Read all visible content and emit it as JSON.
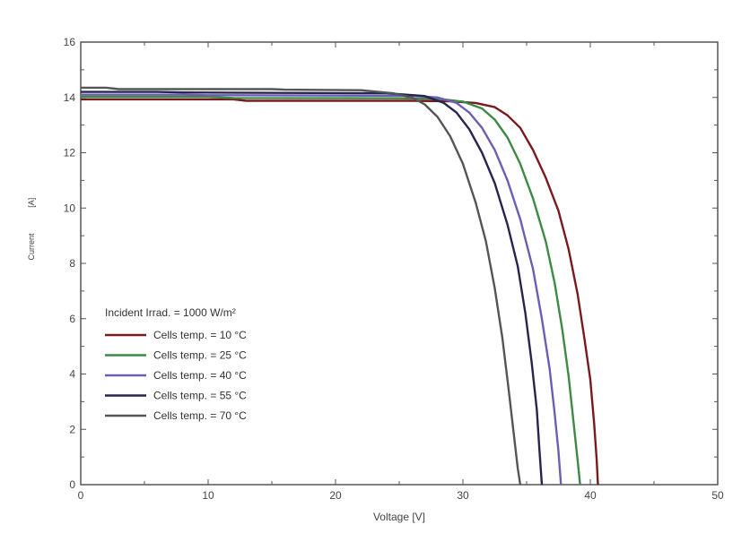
{
  "chart_data": {
    "type": "line",
    "title": "",
    "xlabel": "Voltage  [V]",
    "ylabel_name": "Current",
    "ylabel_unit": "[A]",
    "xlim": [
      0,
      50
    ],
    "ylim": [
      0,
      16
    ],
    "x_ticks": [
      0,
      10,
      20,
      30,
      40,
      50
    ],
    "y_ticks": [
      0,
      2,
      4,
      6,
      8,
      10,
      12,
      14,
      16
    ],
    "grid": false,
    "legend_title": "Incident Irrad. = 1000 W/m²",
    "legend_position": "center-left",
    "series": [
      {
        "name": "Cells temp. = 10  °C",
        "color": "#7a1a1e",
        "points": [
          [
            0,
            13.93
          ],
          [
            12,
            13.93
          ],
          [
            13,
            13.88
          ],
          [
            26,
            13.88
          ],
          [
            29,
            13.86
          ],
          [
            31,
            13.8
          ],
          [
            32.5,
            13.65
          ],
          [
            33.5,
            13.35
          ],
          [
            34.5,
            12.9
          ],
          [
            35.5,
            12.1
          ],
          [
            36.5,
            11.1
          ],
          [
            37.5,
            9.9
          ],
          [
            38.3,
            8.5
          ],
          [
            39,
            6.9
          ],
          [
            39.5,
            5.4
          ],
          [
            40,
            3.8
          ],
          [
            40.3,
            2.2
          ],
          [
            40.5,
            0.9
          ],
          [
            40.6,
            0
          ]
        ]
      },
      {
        "name": "Cells temp. = 25  °C",
        "color": "#3d8a45",
        "points": [
          [
            0,
            14.02
          ],
          [
            10,
            14.02
          ],
          [
            12,
            13.98
          ],
          [
            25,
            13.97
          ],
          [
            28,
            13.95
          ],
          [
            30,
            13.85
          ],
          [
            31.5,
            13.6
          ],
          [
            32.5,
            13.2
          ],
          [
            33.5,
            12.55
          ],
          [
            34.5,
            11.6
          ],
          [
            35.5,
            10.35
          ],
          [
            36.5,
            8.8
          ],
          [
            37.2,
            7.3
          ],
          [
            37.8,
            5.6
          ],
          [
            38.3,
            3.9
          ],
          [
            38.7,
            2.2
          ],
          [
            39,
            0.9
          ],
          [
            39.2,
            0
          ]
        ]
      },
      {
        "name": "Cells temp. = 40  °C",
        "color": "#6a5fb5",
        "points": [
          [
            0,
            14.1
          ],
          [
            8,
            14.1
          ],
          [
            10,
            14.08
          ],
          [
            26,
            14.06
          ],
          [
            28,
            14.0
          ],
          [
            29.5,
            13.8
          ],
          [
            30.5,
            13.45
          ],
          [
            31.5,
            12.9
          ],
          [
            32.5,
            12.1
          ],
          [
            33.5,
            11.0
          ],
          [
            34.5,
            9.6
          ],
          [
            35.5,
            7.8
          ],
          [
            36.2,
            6.0
          ],
          [
            36.8,
            4.2
          ],
          [
            37.2,
            2.6
          ],
          [
            37.5,
            1.2
          ],
          [
            37.7,
            0
          ]
        ]
      },
      {
        "name": "Cells temp. = 55  °C",
        "color": "#272450",
        "points": [
          [
            0,
            14.2
          ],
          [
            6,
            14.2
          ],
          [
            8,
            14.18
          ],
          [
            24,
            14.15
          ],
          [
            27,
            14.05
          ],
          [
            28.5,
            13.8
          ],
          [
            29.5,
            13.45
          ],
          [
            30.5,
            12.85
          ],
          [
            31.5,
            12.0
          ],
          [
            32.5,
            10.9
          ],
          [
            33.5,
            9.4
          ],
          [
            34.3,
            7.9
          ],
          [
            34.9,
            6.2
          ],
          [
            35.4,
            4.4
          ],
          [
            35.8,
            2.7
          ],
          [
            36.0,
            1.3
          ],
          [
            36.2,
            0
          ]
        ]
      },
      {
        "name": "Cells temp. = 70  °C",
        "color": "#555555",
        "points": [
          [
            0,
            14.35
          ],
          [
            2,
            14.35
          ],
          [
            3,
            14.3
          ],
          [
            15,
            14.3
          ],
          [
            16,
            14.28
          ],
          [
            22,
            14.26
          ],
          [
            24.5,
            14.15
          ],
          [
            26,
            14.0
          ],
          [
            27,
            13.75
          ],
          [
            28,
            13.3
          ],
          [
            29,
            12.6
          ],
          [
            30,
            11.6
          ],
          [
            31,
            10.2
          ],
          [
            31.8,
            8.8
          ],
          [
            32.5,
            7.1
          ],
          [
            33.1,
            5.3
          ],
          [
            33.6,
            3.4
          ],
          [
            34.0,
            1.8
          ],
          [
            34.3,
            0.6
          ],
          [
            34.5,
            0
          ]
        ]
      }
    ]
  }
}
